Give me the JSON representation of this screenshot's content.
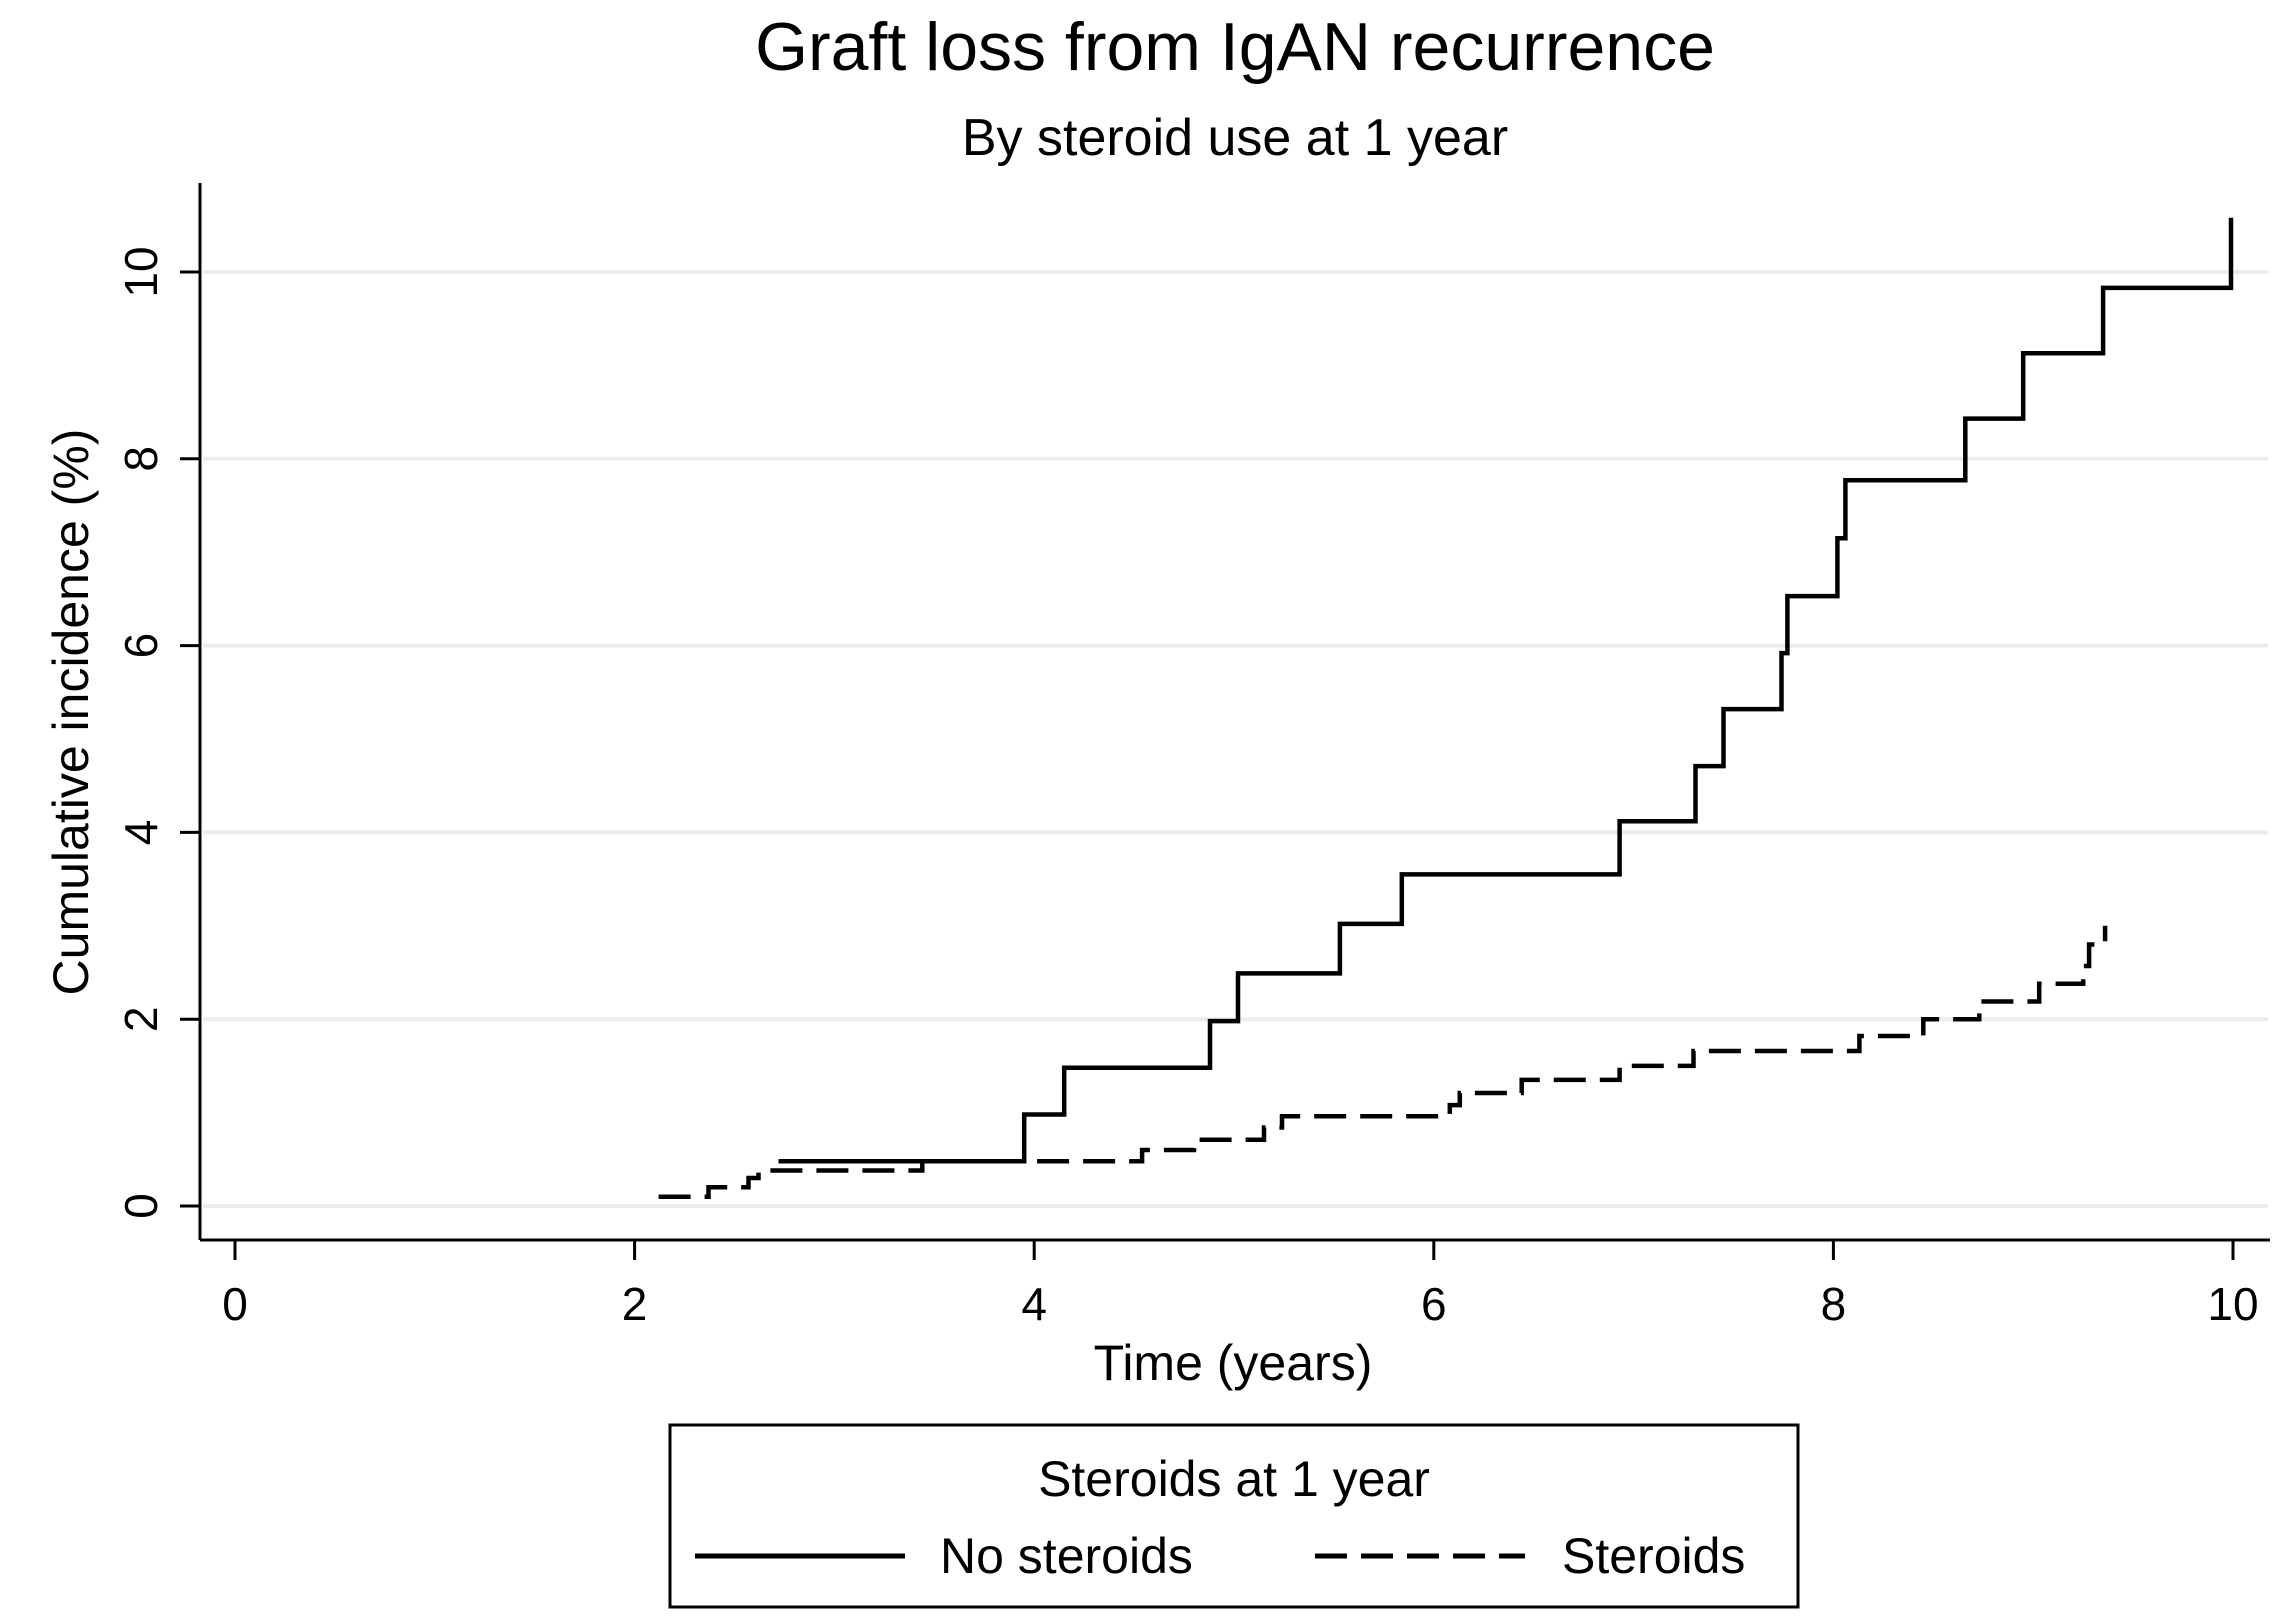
{
  "chart_data": {
    "type": "line",
    "title": "Graft loss from IgAN recurrence",
    "subtitle": "By steroid use at 1 year",
    "xlabel": "Time (years)",
    "ylabel": "Cumulative incidence (%)",
    "xlim": [
      0,
      10
    ],
    "ylim": [
      0,
      10.5
    ],
    "x_ticks": [
      0,
      2,
      4,
      6,
      8,
      10
    ],
    "y_ticks": [
      0,
      2,
      4,
      6,
      8,
      10
    ],
    "grid": "horizontal",
    "legend": {
      "title": "Steroids at 1 year",
      "position": "bottom"
    },
    "series": [
      {
        "name": "No steroids",
        "line_style": "solid",
        "color": "#000000",
        "step": true,
        "points": [
          [
            2.72,
            0.48
          ],
          [
            3.95,
            0.48
          ],
          [
            3.95,
            0.98
          ],
          [
            4.15,
            0.98
          ],
          [
            4.15,
            1.48
          ],
          [
            4.88,
            1.48
          ],
          [
            4.88,
            1.98
          ],
          [
            5.02,
            1.98
          ],
          [
            5.02,
            2.49
          ],
          [
            5.53,
            2.49
          ],
          [
            5.53,
            3.02
          ],
          [
            5.84,
            3.02
          ],
          [
            5.84,
            3.55
          ],
          [
            6.93,
            3.55
          ],
          [
            6.93,
            4.12
          ],
          [
            7.31,
            4.12
          ],
          [
            7.31,
            4.71
          ],
          [
            7.45,
            4.71
          ],
          [
            7.45,
            5.32
          ],
          [
            7.74,
            5.32
          ],
          [
            7.74,
            5.92
          ],
          [
            7.77,
            5.92
          ],
          [
            7.77,
            6.53
          ],
          [
            8.02,
            6.53
          ],
          [
            8.02,
            7.15
          ],
          [
            8.06,
            7.15
          ],
          [
            8.06,
            7.77
          ],
          [
            8.66,
            7.77
          ],
          [
            8.66,
            8.43
          ],
          [
            8.95,
            8.43
          ],
          [
            8.95,
            9.13
          ],
          [
            9.35,
            9.13
          ],
          [
            9.35,
            9.83
          ],
          [
            9.99,
            9.83
          ],
          [
            9.99,
            10.58
          ]
        ]
      },
      {
        "name": "Steroids",
        "line_style": "dashed",
        "color": "#000000",
        "step": true,
        "points": [
          [
            2.12,
            0.1
          ],
          [
            2.37,
            0.1
          ],
          [
            2.37,
            0.2
          ],
          [
            2.57,
            0.2
          ],
          [
            2.57,
            0.3
          ],
          [
            2.62,
            0.3
          ],
          [
            2.62,
            0.38
          ],
          [
            3.44,
            0.38
          ],
          [
            3.44,
            0.48
          ],
          [
            4.54,
            0.48
          ],
          [
            4.54,
            0.6
          ],
          [
            4.8,
            0.6
          ],
          [
            4.8,
            0.71
          ],
          [
            5.15,
            0.71
          ],
          [
            5.15,
            0.84
          ],
          [
            5.24,
            0.84
          ],
          [
            5.24,
            0.96
          ],
          [
            6.08,
            0.96
          ],
          [
            6.08,
            1.08
          ],
          [
            6.13,
            1.08
          ],
          [
            6.13,
            1.21
          ],
          [
            6.44,
            1.21
          ],
          [
            6.44,
            1.35
          ],
          [
            6.93,
            1.35
          ],
          [
            6.93,
            1.5
          ],
          [
            7.3,
            1.5
          ],
          [
            7.3,
            1.66
          ],
          [
            8.13,
            1.66
          ],
          [
            8.13,
            1.82
          ],
          [
            8.45,
            1.82
          ],
          [
            8.45,
            2.0
          ],
          [
            8.73,
            2.0
          ],
          [
            8.73,
            2.19
          ],
          [
            9.03,
            2.19
          ],
          [
            9.03,
            2.38
          ],
          [
            9.25,
            2.38
          ],
          [
            9.25,
            2.57
          ],
          [
            9.28,
            2.57
          ],
          [
            9.28,
            2.8
          ],
          [
            9.36,
            2.8
          ],
          [
            9.36,
            3.0
          ]
        ]
      }
    ]
  }
}
